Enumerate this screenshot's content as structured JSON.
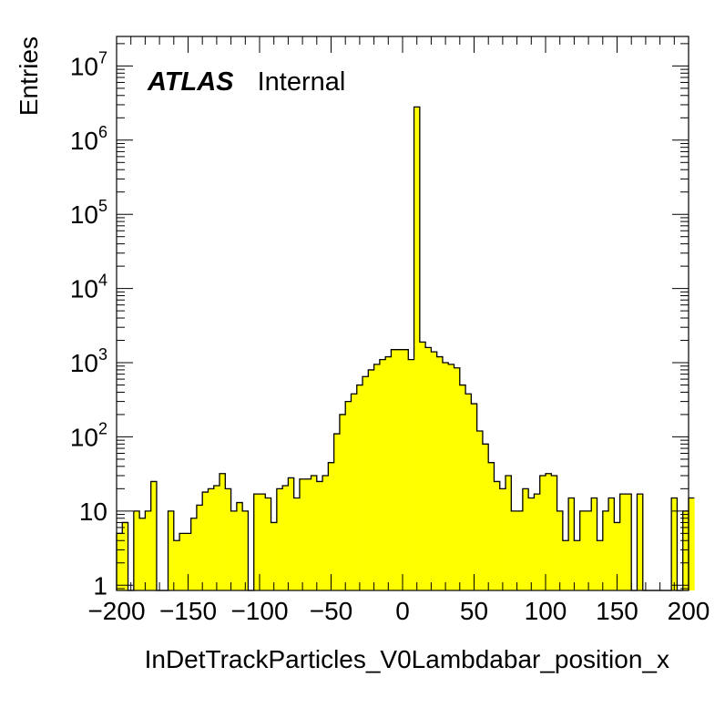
{
  "chart_data": {
    "type": "bar",
    "title": "",
    "xlabel": "InDetTrackParticles_V0Lambdabar_position_x",
    "ylabel": "Entries",
    "xlim": [
      -200,
      200
    ],
    "ylim": [
      0.85,
      25000000
    ],
    "y_scale": "log",
    "grid": false,
    "bin_width": 4,
    "label": {
      "bold": "ATLAS",
      "normal": "Internal"
    },
    "x_ticks": [
      -200,
      -150,
      -100,
      -50,
      0,
      50,
      100,
      150,
      200
    ],
    "x_tick_labels": [
      "−200",
      "−150",
      "−100",
      "−50",
      "0",
      "50",
      "100",
      "150",
      "200"
    ],
    "y_ticks": [
      1,
      10,
      100,
      1000,
      10000,
      100000,
      1000000,
      10000000
    ],
    "y_tick_labels": [
      {
        "base": "1",
        "exp": ""
      },
      {
        "base": "10",
        "exp": ""
      },
      {
        "base": "10",
        "exp": "2"
      },
      {
        "base": "10",
        "exp": "3"
      },
      {
        "base": "10",
        "exp": "4"
      },
      {
        "base": "10",
        "exp": "5"
      },
      {
        "base": "10",
        "exp": "6"
      },
      {
        "base": "10",
        "exp": "7"
      }
    ],
    "fill_color": "#ffff00",
    "line_color": "#000000",
    "values": [
      5,
      7,
      0,
      10,
      8,
      10,
      25,
      0,
      0,
      10,
      4,
      5,
      5,
      8,
      12,
      18,
      20,
      22,
      32,
      20,
      10,
      13,
      10,
      0,
      17,
      17,
      15,
      7,
      20,
      22,
      28,
      15,
      27,
      27,
      30,
      25,
      30,
      45,
      110,
      200,
      300,
      380,
      500,
      650,
      800,
      950,
      1100,
      1200,
      1500,
      1500,
      1500,
      1100,
      2800000,
      1900,
      1600,
      1400,
      1200,
      1000,
      950,
      850,
      500,
      380,
      280,
      120,
      80,
      45,
      25,
      20,
      30,
      10,
      10,
      20,
      15,
      17,
      30,
      32,
      30,
      10,
      4,
      15,
      4,
      10,
      10,
      15,
      4,
      10,
      15,
      7,
      17,
      17,
      0,
      17,
      0,
      0,
      0,
      0,
      0,
      15,
      0,
      10,
      15
    ]
  }
}
